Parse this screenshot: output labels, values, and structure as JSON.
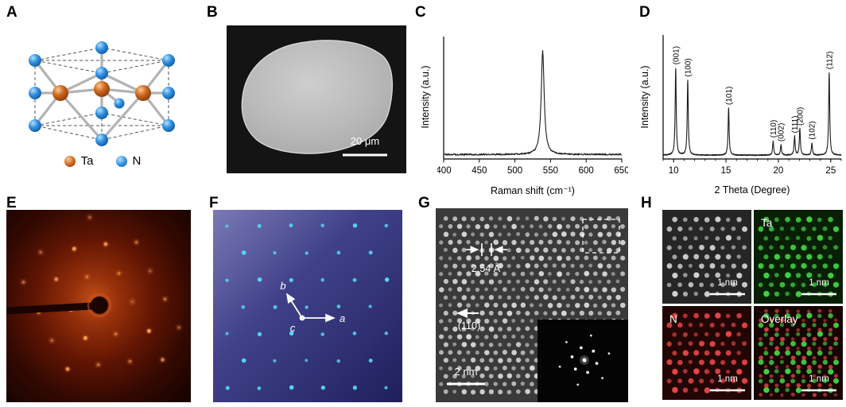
{
  "panels": {
    "a": {
      "label": "A",
      "legend": [
        {
          "name": "Ta",
          "color": "#c8641e"
        },
        {
          "name": "N",
          "color": "#2f8fe0"
        }
      ]
    },
    "b": {
      "label": "B",
      "scale_bar": "20 μm"
    },
    "c": {
      "label": "C"
    },
    "d": {
      "label": "D"
    },
    "e": {
      "label": "E"
    },
    "f": {
      "label": "F",
      "axes": {
        "a": "a",
        "b": "b",
        "c": "c"
      }
    },
    "g": {
      "label": "G",
      "spacing_label": "2.54 Å",
      "direction_label": "(110)",
      "scale_bar": "2 nm"
    },
    "h": {
      "label": "H",
      "tiles": [
        {
          "name": "",
          "scale_bar": "1 nm",
          "dot_colors": [
            "#d2d2d2"
          ]
        },
        {
          "name": "Ta",
          "scale_bar": "1 nm",
          "dot_colors": [
            "#3fd23f"
          ]
        },
        {
          "name": "N",
          "scale_bar": "1 nm",
          "dot_colors": [
            "#e84545"
          ]
        },
        {
          "name": "Overlay",
          "scale_bar": "1 nm",
          "dot_colors": [
            "#3fd23f",
            "#e84545"
          ]
        }
      ]
    }
  },
  "chart_data": [
    {
      "id": "raman",
      "type": "line",
      "panel": "C",
      "title": "",
      "xlabel": "Raman shift (cm⁻¹)",
      "ylabel": "Intensity (a.u.)",
      "xlim": [
        400,
        650
      ],
      "xticks": [
        400,
        450,
        500,
        550,
        600,
        650
      ],
      "baseline": 0.02,
      "noise": 0.015,
      "line_color": "#1a1a1a",
      "grid": false,
      "legend_position": "none",
      "peaks": [
        {
          "x": 539,
          "height": 1.0,
          "width": 2.5
        }
      ]
    },
    {
      "id": "xrd",
      "type": "line",
      "panel": "D",
      "title": "",
      "xlabel": "2 Theta (Degree)",
      "ylabel": "Intensity (a.u.)",
      "xlim": [
        9,
        26
      ],
      "xticks": [
        10,
        15,
        20,
        25
      ],
      "baseline": 0.015,
      "noise": 0.01,
      "peak_width": 0.06,
      "line_color": "#1a1a1a",
      "grid": false,
      "legend_position": "none",
      "peaks": [
        {
          "x": 10.2,
          "height": 0.93,
          "label": "(001)"
        },
        {
          "x": 11.35,
          "height": 0.8,
          "label": "(100)"
        },
        {
          "x": 15.25,
          "height": 0.5,
          "label": "(101)"
        },
        {
          "x": 19.5,
          "height": 0.15,
          "label": "(110)"
        },
        {
          "x": 20.25,
          "height": 0.11,
          "label": "(002)"
        },
        {
          "x": 21.55,
          "height": 0.2,
          "label": "(111)"
        },
        {
          "x": 22.05,
          "height": 0.28,
          "label": "(200)"
        },
        {
          "x": 23.2,
          "height": 0.13,
          "label": "(102)"
        },
        {
          "x": 24.85,
          "height": 0.88,
          "label": "(112)"
        }
      ]
    }
  ]
}
